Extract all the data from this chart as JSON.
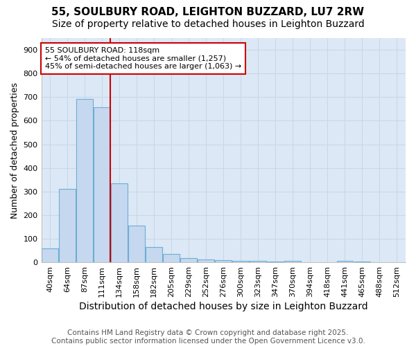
{
  "title": "55, SOULBURY ROAD, LEIGHTON BUZZARD, LU7 2RW",
  "subtitle": "Size of property relative to detached houses in Leighton Buzzard",
  "xlabel": "Distribution of detached houses by size in Leighton Buzzard",
  "ylabel": "Number of detached properties",
  "categories": [
    "40sqm",
    "64sqm",
    "87sqm",
    "111sqm",
    "134sqm",
    "158sqm",
    "182sqm",
    "205sqm",
    "229sqm",
    "252sqm",
    "276sqm",
    "300sqm",
    "323sqm",
    "347sqm",
    "370sqm",
    "394sqm",
    "418sqm",
    "441sqm",
    "465sqm",
    "488sqm",
    "512sqm"
  ],
  "values": [
    60,
    312,
    693,
    657,
    335,
    155,
    65,
    35,
    18,
    12,
    8,
    7,
    5,
    3,
    5,
    1,
    1,
    7,
    3,
    1,
    1
  ],
  "bar_color": "#c5d8ef",
  "bar_edge_color": "#6baed6",
  "bar_width": 0.95,
  "ylim": [
    0,
    950
  ],
  "yticks": [
    0,
    100,
    200,
    300,
    400,
    500,
    600,
    700,
    800,
    900
  ],
  "redline_label": "55 SOULBURY ROAD: 118sqm",
  "annotation_line2": "← 54% of detached houses are smaller (1,257)",
  "annotation_line3": "45% of semi-detached houses are larger (1,063) →",
  "annotation_box_color": "#ffffff",
  "annotation_box_edge": "#cc0000",
  "redline_color": "#cc0000",
  "grid_color": "#c8d8e8",
  "plot_bg_color": "#dce8f5",
  "fig_bg_color": "#ffffff",
  "footer_line1": "Contains HM Land Registry data © Crown copyright and database right 2025.",
  "footer_line2": "Contains public sector information licensed under the Open Government Licence v3.0.",
  "title_fontsize": 11,
  "subtitle_fontsize": 10,
  "xlabel_fontsize": 10,
  "ylabel_fontsize": 9,
  "tick_fontsize": 8,
  "annotation_fontsize": 8,
  "footer_fontsize": 7.5
}
